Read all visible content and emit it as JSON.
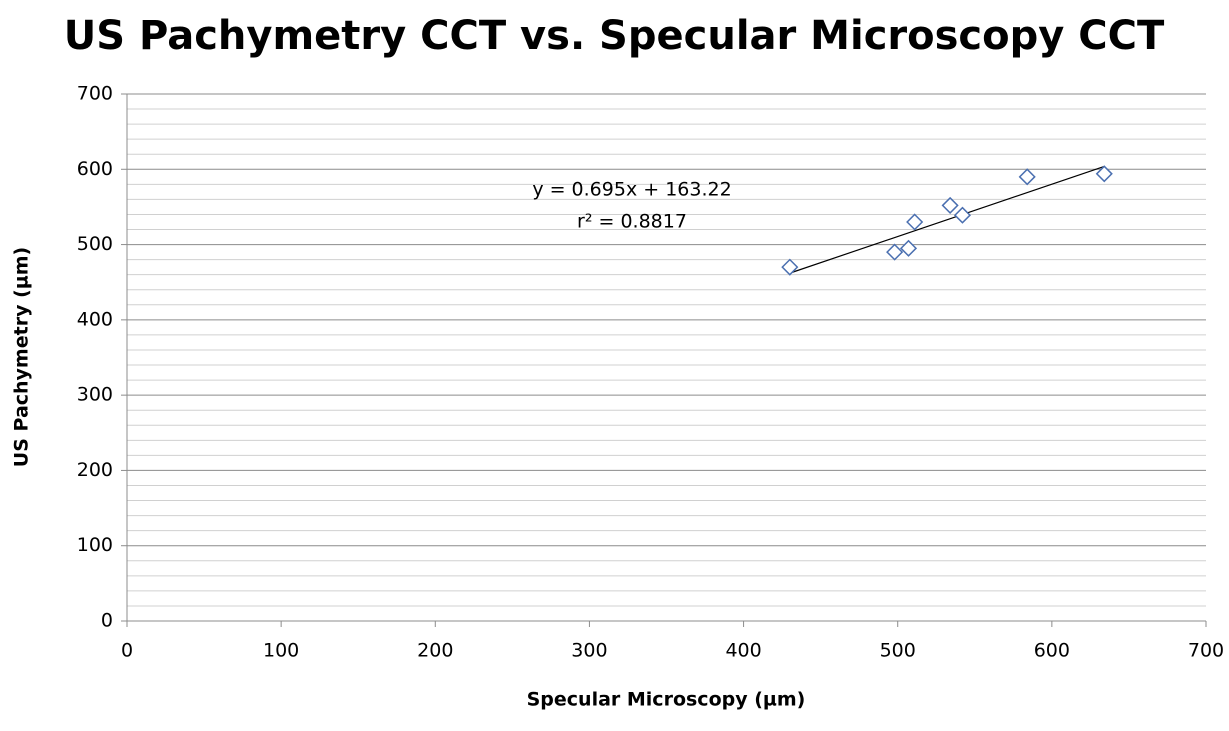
{
  "chart_data": {
    "type": "scatter",
    "title": "US Pachymetry CCT vs. Specular Microscopy CCT",
    "x_label": "Specular Microscopy (µm)",
    "y_label": "US Pachymetry (µm)",
    "x": [
      430,
      498,
      507,
      511,
      534,
      542,
      584,
      634
    ],
    "values": [
      470,
      490,
      495,
      530,
      552,
      539,
      590,
      594
    ],
    "color": "#4a6fb0",
    "xlim": [
      0,
      700
    ],
    "xticks": [
      0,
      100,
      200,
      300,
      400,
      500,
      600,
      700
    ],
    "ylim": [
      0,
      700
    ],
    "yticks": [
      0,
      100,
      200,
      300,
      400,
      500,
      600,
      700
    ],
    "grid": true,
    "minor_grid": true,
    "trendline": {
      "slope": 0.695,
      "intercept": 163.22,
      "label": "y = 0.695x + 163.22",
      "r2_label": "r² = 0.8817"
    }
  }
}
